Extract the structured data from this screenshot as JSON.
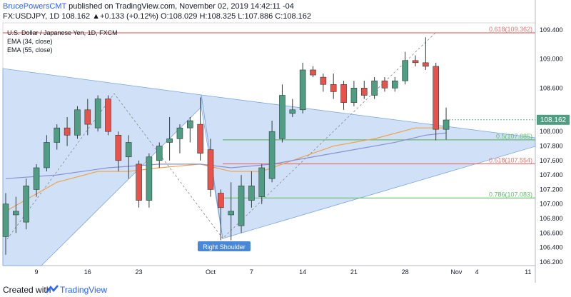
{
  "header": {
    "author": "BrucePowersCMT",
    "published": " published on TradingView.com, November 02, 2019 14:42:11 -04",
    "symbol_line": "FX:USDJPY, 1D  108.162  ▲+0.133 (+0.12%)  O:108.029  H:108.325  L:107.886  C:108.162"
  },
  "legend": {
    "line1": "U.S. Dollar / Japanese Yen, 1D, FXCM",
    "line2": "EMA (34, close)",
    "line3": "EMA (55, close)"
  },
  "footer": {
    "created_with": "Created with",
    "brand": "TradingView"
  },
  "annotation": "Right Shoulder",
  "last_price_label": "108.162",
  "colors": {
    "up": "#4f9d82",
    "down": "#e8524a",
    "ema34": "#f0a24a",
    "ema55": "#8a8fd6",
    "triangle_fill": "#a9c8f0",
    "fib_red": "#e57373",
    "fib_green": "#66bb6a"
  },
  "chart_data": {
    "type": "candlestick",
    "y_axis_ticks": [
      109.4,
      109.0,
      108.6,
      108.2,
      108.0,
      107.8,
      107.6,
      107.4,
      107.2,
      107.0,
      106.8,
      106.6,
      106.4,
      106.2
    ],
    "ylim": [
      106.15,
      109.5
    ],
    "x_ticks": [
      {
        "label": "9",
        "index": 3
      },
      {
        "label": "16",
        "index": 8
      },
      {
        "label": "23",
        "index": 13
      },
      {
        "label": "Oct",
        "index": 20
      },
      {
        "label": "7",
        "index": 24
      },
      {
        "label": "14",
        "index": 29
      },
      {
        "label": "21",
        "index": 34
      },
      {
        "label": "28",
        "index": 39
      },
      {
        "label": "Nov",
        "index": 44
      },
      {
        "label": "4",
        "index": 46
      },
      {
        "label": "11",
        "index": 51
      }
    ],
    "candles": [
      {
        "i": 0,
        "o": 106.55,
        "h": 107.15,
        "l": 106.3,
        "c": 107.0
      },
      {
        "i": 1,
        "o": 106.85,
        "h": 107.1,
        "l": 106.6,
        "c": 106.9
      },
      {
        "i": 2,
        "o": 106.75,
        "h": 107.35,
        "l": 106.65,
        "c": 107.25
      },
      {
        "i": 3,
        "o": 107.2,
        "h": 107.55,
        "l": 107.1,
        "c": 107.5
      },
      {
        "i": 4,
        "o": 107.5,
        "h": 107.95,
        "l": 107.45,
        "c": 107.85
      },
      {
        "i": 5,
        "o": 107.85,
        "h": 108.1,
        "l": 107.75,
        "c": 108.05
      },
      {
        "i": 6,
        "o": 108.05,
        "h": 108.2,
        "l": 107.8,
        "c": 107.95
      },
      {
        "i": 7,
        "o": 107.95,
        "h": 108.35,
        "l": 107.9,
        "c": 108.3
      },
      {
        "i": 8,
        "o": 108.3,
        "h": 108.45,
        "l": 107.95,
        "c": 108.1
      },
      {
        "i": 9,
        "o": 108.05,
        "h": 108.5,
        "l": 108.0,
        "c": 108.45
      },
      {
        "i": 10,
        "o": 108.45,
        "h": 108.5,
        "l": 107.95,
        "c": 108.0
      },
      {
        "i": 11,
        "o": 107.95,
        "h": 108.0,
        "l": 107.45,
        "c": 107.6
      },
      {
        "i": 12,
        "o": 107.65,
        "h": 107.95,
        "l": 107.35,
        "c": 107.85
      },
      {
        "i": 13,
        "o": 107.55,
        "h": 107.6,
        "l": 106.95,
        "c": 107.05
      },
      {
        "i": 14,
        "o": 107.05,
        "h": 107.7,
        "l": 106.95,
        "c": 107.65
      },
      {
        "i": 15,
        "o": 107.6,
        "h": 107.85,
        "l": 107.5,
        "c": 107.8
      },
      {
        "i": 16,
        "o": 107.85,
        "h": 108.2,
        "l": 107.6,
        "c": 107.9
      },
      {
        "i": 17,
        "o": 107.9,
        "h": 108.1,
        "l": 107.7,
        "c": 108.05
      },
      {
        "i": 18,
        "o": 108.05,
        "h": 108.2,
        "l": 107.85,
        "c": 108.15
      },
      {
        "i": 19,
        "o": 108.1,
        "h": 108.47,
        "l": 107.6,
        "c": 107.7
      },
      {
        "i": 20,
        "o": 107.75,
        "h": 107.9,
        "l": 107.1,
        "c": 107.2
      },
      {
        "i": 21,
        "o": 107.15,
        "h": 107.2,
        "l": 106.5,
        "c": 106.95
      },
      {
        "i": 22,
        "o": 106.85,
        "h": 107.3,
        "l": 106.5,
        "c": 106.9
      },
      {
        "i": 23,
        "o": 106.7,
        "h": 107.4,
        "l": 106.6,
        "c": 107.25
      },
      {
        "i": 24,
        "o": 107.05,
        "h": 107.45,
        "l": 106.95,
        "c": 107.25
      },
      {
        "i": 25,
        "o": 107.1,
        "h": 107.55,
        "l": 107.0,
        "c": 107.5
      },
      {
        "i": 26,
        "o": 107.35,
        "h": 108.15,
        "l": 107.3,
        "c": 108.0
      },
      {
        "i": 27,
        "o": 107.9,
        "h": 108.65,
        "l": 107.85,
        "c": 108.5
      },
      {
        "i": 28,
        "o": 108.25,
        "h": 108.45,
        "l": 108.2,
        "c": 108.3
      },
      {
        "i": 29,
        "o": 108.3,
        "h": 108.95,
        "l": 108.25,
        "c": 108.85
      },
      {
        "i": 30,
        "o": 108.85,
        "h": 108.9,
        "l": 108.75,
        "c": 108.78
      },
      {
        "i": 31,
        "o": 108.75,
        "h": 108.8,
        "l": 108.55,
        "c": 108.65
      },
      {
        "i": 32,
        "o": 108.65,
        "h": 108.8,
        "l": 108.45,
        "c": 108.55
      },
      {
        "i": 33,
        "o": 108.65,
        "h": 108.7,
        "l": 108.3,
        "c": 108.4
      },
      {
        "i": 34,
        "o": 108.4,
        "h": 108.7,
        "l": 108.35,
        "c": 108.6
      },
      {
        "i": 35,
        "o": 108.6,
        "h": 108.7,
        "l": 108.45,
        "c": 108.5
      },
      {
        "i": 36,
        "o": 108.5,
        "h": 108.75,
        "l": 108.45,
        "c": 108.7
      },
      {
        "i": 37,
        "o": 108.7,
        "h": 108.75,
        "l": 108.55,
        "c": 108.6
      },
      {
        "i": 38,
        "o": 108.6,
        "h": 108.75,
        "l": 108.55,
        "c": 108.7
      },
      {
        "i": 39,
        "o": 108.7,
        "h": 109.1,
        "l": 108.65,
        "c": 108.98
      },
      {
        "i": 40,
        "o": 108.98,
        "h": 109.05,
        "l": 108.9,
        "c": 108.95
      },
      {
        "i": 41,
        "o": 108.95,
        "h": 109.3,
        "l": 108.85,
        "c": 108.9
      },
      {
        "i": 42,
        "o": 108.9,
        "h": 108.95,
        "l": 107.88,
        "c": 108.03
      },
      {
        "i": 43,
        "o": 108.03,
        "h": 108.33,
        "l": 107.89,
        "c": 108.16
      }
    ],
    "ema34": [
      [
        0,
        106.9
      ],
      [
        5,
        107.3
      ],
      [
        9,
        107.45
      ],
      [
        12,
        107.45
      ],
      [
        15,
        107.5
      ],
      [
        19,
        107.55
      ],
      [
        22,
        107.45
      ],
      [
        25,
        107.45
      ],
      [
        28,
        107.6
      ],
      [
        32,
        107.8
      ],
      [
        36,
        107.9
      ],
      [
        40,
        108.05
      ],
      [
        43,
        108.05
      ]
    ],
    "ema55": [
      [
        0,
        107.35
      ],
      [
        5,
        107.4
      ],
      [
        10,
        107.5
      ],
      [
        15,
        107.55
      ],
      [
        19,
        107.55
      ],
      [
        22,
        107.5
      ],
      [
        26,
        107.55
      ],
      [
        30,
        107.65
      ],
      [
        34,
        107.75
      ],
      [
        38,
        107.85
      ],
      [
        41,
        107.95
      ],
      [
        43,
        107.98
      ]
    ],
    "fib_levels": [
      {
        "label": "0.618(109.362)",
        "value": 109.362,
        "color": "red"
      },
      {
        "label": "0.5(107.885)",
        "value": 107.885,
        "color": "green"
      },
      {
        "label": "0.618(107.554)",
        "value": 107.554,
        "color": "red"
      },
      {
        "label": "0.786(107.083)",
        "value": 107.083,
        "color": "green"
      }
    ],
    "last_price": 108.162
  }
}
